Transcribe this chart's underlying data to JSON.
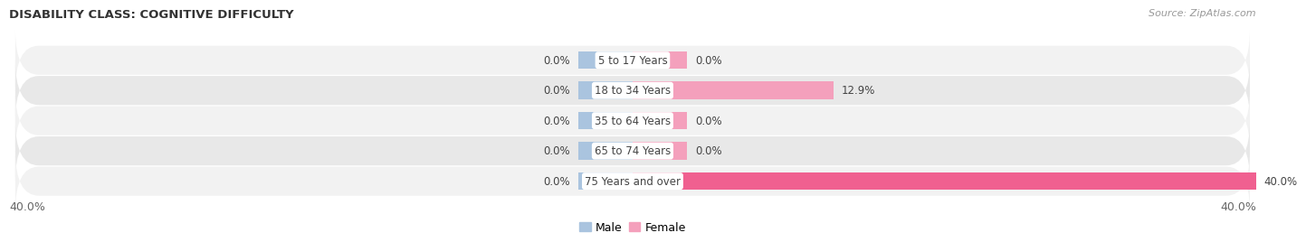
{
  "title": "DISABILITY CLASS: COGNITIVE DIFFICULTY",
  "source": "Source: ZipAtlas.com",
  "categories": [
    "5 to 17 Years",
    "18 to 34 Years",
    "35 to 64 Years",
    "65 to 74 Years",
    "75 Years and over"
  ],
  "male_values": [
    0.0,
    0.0,
    0.0,
    0.0,
    0.0
  ],
  "female_values": [
    0.0,
    12.9,
    0.0,
    0.0,
    40.0
  ],
  "max_val": 40.0,
  "male_color": "#aac4df",
  "female_color": "#f4a0bc",
  "female_color_bright": "#f06090",
  "row_bg_odd": "#f2f2f2",
  "row_bg_even": "#e8e8e8",
  "label_color": "#444444",
  "title_color": "#333333",
  "source_color": "#999999",
  "axis_label_color": "#666666",
  "legend_male_color": "#aac4df",
  "legend_female_color": "#f4a0bc",
  "min_bar_pct": 3.5,
  "bar_height": 0.58,
  "figsize": [
    14.06,
    2.7
  ],
  "dpi": 100
}
